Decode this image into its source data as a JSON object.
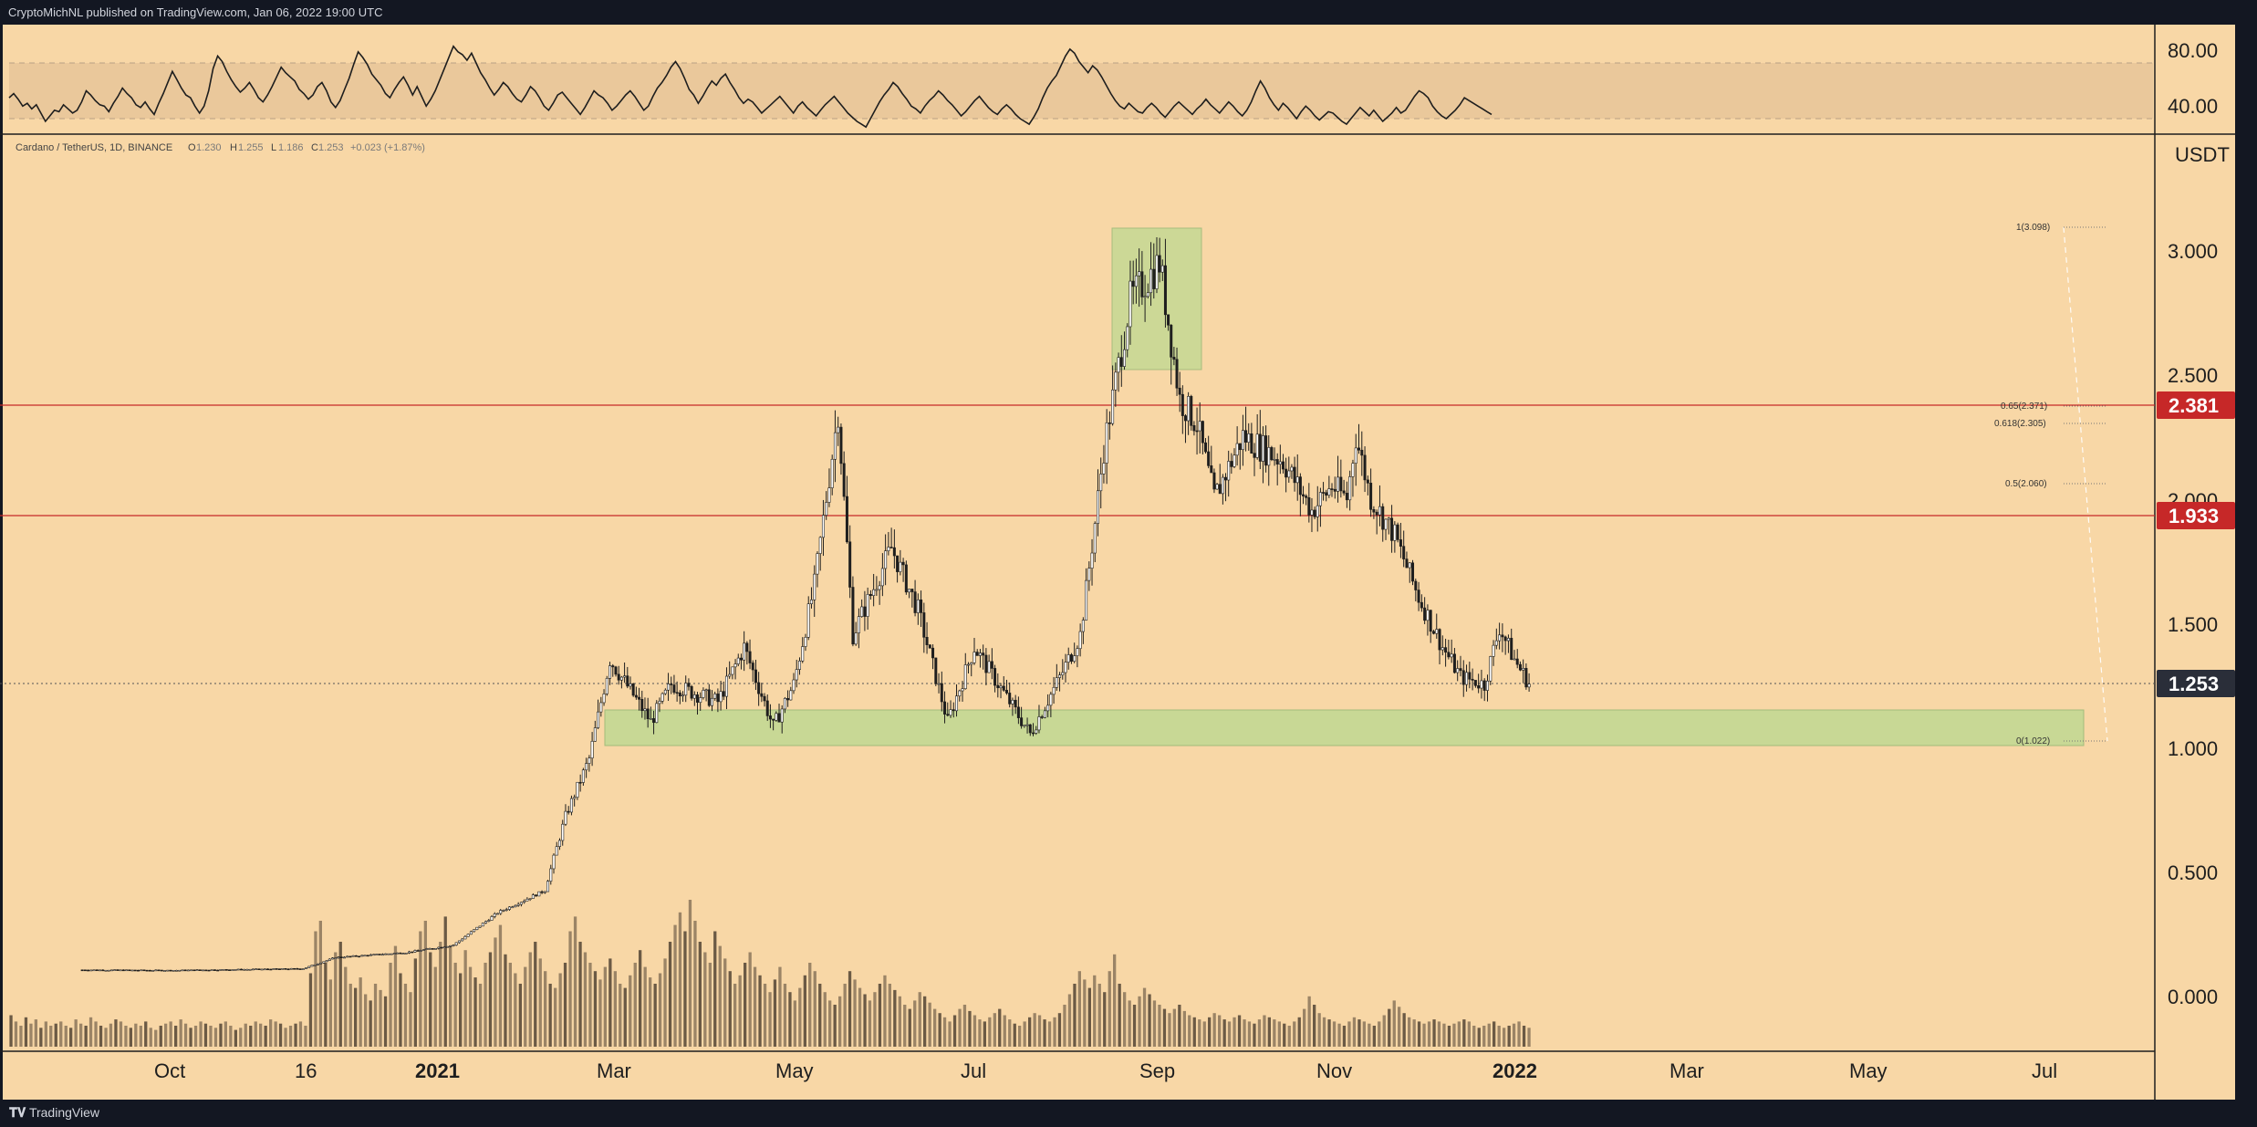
{
  "header": {
    "published_by": "CryptoMichNL published on TradingView.com, Jan 06, 2022 19:00 UTC"
  },
  "footer": {
    "brand": "TradingView"
  },
  "legend": {
    "symbol": "Cardano / TetherUS, 1D, BINANCE",
    "o_label": "O",
    "o": "1.230",
    "h_label": "H",
    "h": "1.255",
    "l_label": "L",
    "l": "1.186",
    "c_label": "C",
    "c": "1.253",
    "change": "+0.023 (+1.87%)"
  },
  "colors": {
    "background": "#f8d7a6",
    "dark": "#131722",
    "candle": "#1e1e1e",
    "level_line": "#c62828",
    "price_tag": "#1e222d",
    "zone_fill": "#b5d98f"
  },
  "chart_data": [
    {
      "type": "line",
      "name": "rsi-pane",
      "ylim": [
        20,
        100
      ],
      "y_ticks": [
        "80.00",
        "40.00"
      ],
      "band": [
        30,
        70
      ],
      "values": [
        55,
        58,
        54,
        49,
        51,
        47,
        50,
        44,
        38,
        42,
        46,
        45,
        50,
        47,
        44,
        46,
        52,
        60,
        57,
        53,
        50,
        49,
        45,
        51,
        56,
        62,
        58,
        55,
        50,
        48,
        52,
        47,
        43,
        51,
        58,
        66,
        74,
        68,
        62,
        57,
        55,
        49,
        44,
        49,
        60,
        76,
        85,
        81,
        74,
        68,
        63,
        59,
        62,
        66,
        61,
        55,
        52,
        57,
        63,
        70,
        77,
        73,
        70,
        67,
        61,
        58,
        54,
        57,
        63,
        66,
        60,
        52,
        48,
        53,
        61,
        69,
        79,
        88,
        84,
        79,
        72,
        68,
        64,
        58,
        55,
        61,
        66,
        70,
        64,
        57,
        63,
        56,
        49,
        54,
        60,
        68,
        76,
        84,
        92,
        88,
        86,
        82,
        87,
        80,
        73,
        68,
        62,
        57,
        61,
        66,
        63,
        58,
        54,
        52,
        57,
        63,
        60,
        55,
        49,
        46,
        51,
        57,
        59,
        55,
        51,
        47,
        43,
        48,
        54,
        60,
        57,
        55,
        51,
        46,
        49,
        53,
        57,
        60,
        56,
        51,
        46,
        49,
        56,
        62,
        66,
        71,
        77,
        81,
        76,
        69,
        61,
        57,
        51,
        56,
        62,
        67,
        64,
        69,
        72,
        66,
        61,
        55,
        51,
        54,
        52,
        48,
        44,
        47,
        50,
        53,
        56,
        52,
        48,
        44,
        49,
        52,
        48,
        45,
        42,
        46,
        50,
        53,
        56,
        52,
        48,
        44,
        41,
        38,
        36,
        34,
        40,
        46,
        52,
        57,
        61,
        66,
        63,
        58,
        54,
        49,
        47,
        44,
        49,
        53,
        56,
        60,
        57,
        53,
        50,
        46,
        42,
        45,
        49,
        53,
        56,
        52,
        48,
        45,
        43,
        47,
        50,
        47,
        43,
        40,
        38,
        36,
        41,
        47,
        55,
        62,
        67,
        71,
        78,
        85,
        90,
        87,
        81,
        77,
        73,
        78,
        75,
        70,
        64,
        58,
        53,
        49,
        47,
        51,
        48,
        45,
        44,
        48,
        51,
        48,
        44,
        41,
        45,
        49,
        52,
        49,
        46,
        43,
        47,
        50,
        54,
        50,
        47,
        44,
        48,
        52,
        49,
        45,
        42,
        46,
        52,
        60,
        67,
        62,
        55,
        50,
        46,
        51,
        48,
        44,
        40,
        45,
        49,
        46,
        42,
        39,
        42,
        45,
        44,
        41,
        38,
        36,
        40,
        44,
        48,
        45,
        42,
        46,
        42,
        38,
        41,
        44,
        48,
        44,
        46,
        51,
        56,
        60,
        58,
        55,
        49,
        45,
        42,
        40,
        43,
        46,
        50,
        55,
        53,
        51,
        49,
        47,
        45,
        43
      ]
    },
    {
      "type": "candlestick",
      "name": "price-pane",
      "series_label": "Cardano / TetherUS, 1D, BINANCE",
      "y_scale": "log",
      "x_ticks": [
        "Oct",
        "16",
        "2021",
        "Mar",
        "May",
        "Jul",
        "Sep",
        "Nov",
        "2022",
        "Mar",
        "May",
        "Jul"
      ],
      "y_ticks": [
        "3.000",
        "2.500",
        "2.000",
        "1.500",
        "1.000",
        "0.500",
        "0.000"
      ],
      "y_unit": "USDT",
      "last_price": "1.253",
      "close_path": [
        [
          "2020-09-01",
          0.1
        ],
        [
          "2020-10-01",
          0.098
        ],
        [
          "2020-11-15",
          0.105
        ],
        [
          "2020-11-26",
          0.15
        ],
        [
          "2020-12-20",
          0.17
        ],
        [
          "2021-01-05",
          0.2
        ],
        [
          "2021-01-20",
          0.33
        ],
        [
          "2021-02-05",
          0.42
        ],
        [
          "2021-02-12",
          0.72
        ],
        [
          "2021-02-20",
          0.95
        ],
        [
          "2021-02-27",
          1.35
        ],
        [
          "2021-03-13",
          1.1
        ],
        [
          "2021-03-20",
          1.25
        ],
        [
          "2021-04-05",
          1.18
        ],
        [
          "2021-04-14",
          1.4
        ],
        [
          "2021-04-24",
          1.08
        ],
        [
          "2021-05-01",
          1.25
        ],
        [
          "2021-05-08",
          1.65
        ],
        [
          "2021-05-16",
          2.35
        ],
        [
          "2021-05-21",
          1.45
        ],
        [
          "2021-06-03",
          1.8
        ],
        [
          "2021-06-12",
          1.55
        ],
        [
          "2021-06-22",
          1.1
        ],
        [
          "2021-07-01",
          1.4
        ],
        [
          "2021-07-20",
          1.05
        ],
        [
          "2021-07-31",
          1.3
        ],
        [
          "2021-08-06",
          1.45
        ],
        [
          "2021-08-11",
          1.9
        ],
        [
          "2021-08-14",
          2.2
        ],
        [
          "2021-08-23",
          2.8
        ],
        [
          "2021-09-02",
          2.95
        ],
        [
          "2021-09-09",
          2.4
        ],
        [
          "2021-09-15",
          2.3
        ],
        [
          "2021-09-21",
          2.0
        ],
        [
          "2021-10-01",
          2.25
        ],
        [
          "2021-10-15",
          2.15
        ],
        [
          "2021-10-25",
          1.95
        ],
        [
          "2021-11-01",
          2.05
        ],
        [
          "2021-11-06",
          2.0
        ],
        [
          "2021-11-09",
          2.25
        ],
        [
          "2021-11-14",
          2.0
        ],
        [
          "2021-11-22",
          1.85
        ],
        [
          "2021-11-30",
          1.6
        ],
        [
          "2021-12-08",
          1.4
        ],
        [
          "2021-12-14",
          1.28
        ],
        [
          "2021-12-22",
          1.25
        ],
        [
          "2021-12-27",
          1.48
        ],
        [
          "2022-01-01",
          1.35
        ],
        [
          "2022-01-06",
          1.253
        ]
      ],
      "horizontal_levels": [
        {
          "value": 2.381,
          "label": "2.381"
        },
        {
          "value": 1.933,
          "label": "1.933"
        }
      ],
      "fibonacci": [
        {
          "label": "1(3.098)",
          "value": 3.098
        },
        {
          "label": "0.65(2.371)",
          "value": 2.371
        },
        {
          "label": "0.618(2.305)",
          "value": 2.305
        },
        {
          "label": "0.5(2.060)",
          "value": 2.06
        },
        {
          "label": "0(1.022)",
          "value": 1.022
        }
      ],
      "zones": [
        {
          "name": "support-zone",
          "x": [
            "2021-02-27",
            "2022-07-20"
          ],
          "y": [
            1.02,
            1.16
          ]
        },
        {
          "name": "top-zone",
          "x": [
            "2021-08-20",
            "2021-09-17"
          ],
          "y": [
            2.55,
            3.1
          ]
        }
      ]
    },
    {
      "type": "bar",
      "name": "volume-pane",
      "description": "relative daily volume, 0-1",
      "values": [
        0.15,
        0.12,
        0.1,
        0.14,
        0.11,
        0.13,
        0.09,
        0.12,
        0.1,
        0.11,
        0.12,
        0.1,
        0.09,
        0.13,
        0.11,
        0.1,
        0.14,
        0.12,
        0.1,
        0.09,
        0.11,
        0.13,
        0.12,
        0.1,
        0.09,
        0.11,
        0.1,
        0.12,
        0.09,
        0.08,
        0.1,
        0.11,
        0.12,
        0.1,
        0.13,
        0.11,
        0.09,
        0.1,
        0.12,
        0.11,
        0.1,
        0.09,
        0.11,
        0.12,
        0.1,
        0.08,
        0.09,
        0.11,
        0.1,
        0.12,
        0.11,
        0.1,
        0.13,
        0.12,
        0.11,
        0.09,
        0.1,
        0.11,
        0.12,
        0.1,
        0.35,
        0.55,
        0.6,
        0.4,
        0.32,
        0.45,
        0.5,
        0.38,
        0.3,
        0.28,
        0.33,
        0.25,
        0.22,
        0.3,
        0.27,
        0.24,
        0.4,
        0.48,
        0.35,
        0.3,
        0.26,
        0.42,
        0.55,
        0.6,
        0.45,
        0.38,
        0.5,
        0.62,
        0.48,
        0.4,
        0.35,
        0.46,
        0.38,
        0.33,
        0.3,
        0.4,
        0.45,
        0.52,
        0.58,
        0.44,
        0.4,
        0.35,
        0.3,
        0.38,
        0.45,
        0.5,
        0.42,
        0.36,
        0.3,
        0.28,
        0.35,
        0.4,
        0.55,
        0.62,
        0.5,
        0.45,
        0.4,
        0.36,
        0.32,
        0.38,
        0.42,
        0.36,
        0.3,
        0.28,
        0.34,
        0.4,
        0.46,
        0.38,
        0.33,
        0.3,
        0.35,
        0.42,
        0.5,
        0.58,
        0.64,
        0.55,
        0.7,
        0.6,
        0.5,
        0.45,
        0.4,
        0.55,
        0.48,
        0.42,
        0.36,
        0.3,
        0.34,
        0.4,
        0.45,
        0.38,
        0.34,
        0.3,
        0.26,
        0.32,
        0.38,
        0.3,
        0.26,
        0.22,
        0.28,
        0.34,
        0.4,
        0.36,
        0.3,
        0.26,
        0.22,
        0.2,
        0.24,
        0.3,
        0.36,
        0.32,
        0.28,
        0.25,
        0.22,
        0.26,
        0.3,
        0.34,
        0.3,
        0.27,
        0.24,
        0.2,
        0.18,
        0.22,
        0.26,
        0.24,
        0.21,
        0.18,
        0.16,
        0.14,
        0.12,
        0.15,
        0.18,
        0.2,
        0.17,
        0.15,
        0.13,
        0.12,
        0.14,
        0.16,
        0.18,
        0.15,
        0.13,
        0.11,
        0.1,
        0.12,
        0.14,
        0.16,
        0.15,
        0.13,
        0.12,
        0.14,
        0.16,
        0.2,
        0.25,
        0.3,
        0.36,
        0.32,
        0.28,
        0.34,
        0.3,
        0.26,
        0.36,
        0.44,
        0.3,
        0.26,
        0.22,
        0.2,
        0.24,
        0.28,
        0.25,
        0.22,
        0.2,
        0.18,
        0.16,
        0.18,
        0.2,
        0.17,
        0.15,
        0.14,
        0.13,
        0.12,
        0.14,
        0.16,
        0.15,
        0.13,
        0.12,
        0.14,
        0.15,
        0.13,
        0.12,
        0.11,
        0.13,
        0.15,
        0.14,
        0.13,
        0.12,
        0.11,
        0.1,
        0.12,
        0.14,
        0.18,
        0.24,
        0.2,
        0.16,
        0.14,
        0.13,
        0.12,
        0.11,
        0.1,
        0.12,
        0.14,
        0.13,
        0.12,
        0.11,
        0.1,
        0.12,
        0.15,
        0.18,
        0.22,
        0.19,
        0.16,
        0.14,
        0.13,
        0.12,
        0.11,
        0.12,
        0.13,
        0.12,
        0.11,
        0.1,
        0.11,
        0.12,
        0.13,
        0.12,
        0.1,
        0.09,
        0.1,
        0.11,
        0.12,
        0.1,
        0.09,
        0.1,
        0.11,
        0.12,
        0.1,
        0.09
      ]
    }
  ]
}
